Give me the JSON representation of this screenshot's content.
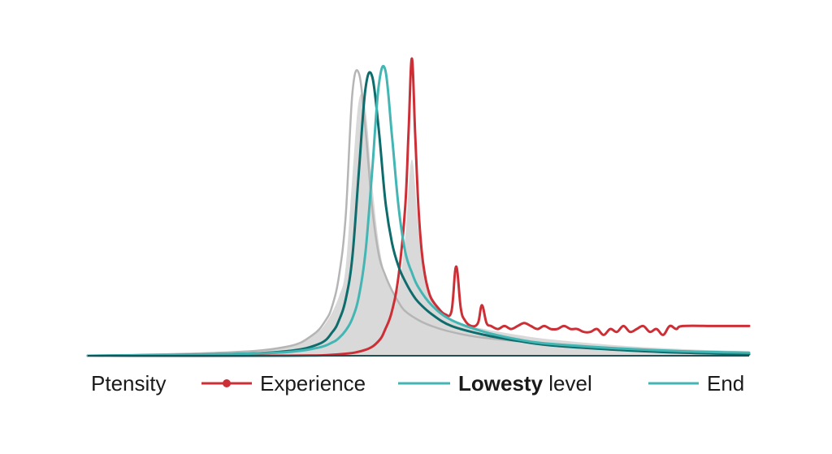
{
  "chart_data": {
    "type": "line",
    "title": "",
    "xlabel": "",
    "ylabel": "",
    "xlim": [
      0,
      100
    ],
    "ylim": [
      0,
      100
    ],
    "grid": false,
    "axes_visible": "x-baseline-only",
    "legend_position": "bottom",
    "legend": {
      "lead_label": "Ptensity",
      "entries": [
        {
          "series": "Experience",
          "marker": "line-with-point"
        },
        {
          "series": "Lowesty level",
          "marker": "line",
          "bold_word": "Lowesty",
          "rest": " level"
        },
        {
          "series": "End",
          "marker": "line"
        }
      ]
    },
    "series": [
      {
        "name": "Ptensity",
        "style": "filled-area",
        "color": "#d9d9d9",
        "x": [
          0,
          20,
          30,
          34,
          36,
          38,
          39,
          40,
          41,
          42,
          43,
          44,
          45,
          46,
          47,
          48,
          49,
          50,
          51,
          52,
          54,
          56,
          60,
          65,
          70,
          80,
          90,
          100
        ],
        "y": [
          0,
          1,
          3,
          7,
          11,
          20,
          30,
          60,
          86,
          83,
          58,
          38,
          27,
          22,
          23,
          40,
          66,
          42,
          26,
          20,
          14,
          11,
          9,
          7,
          5.5,
          3.5,
          2.2,
          1.5
        ]
      },
      {
        "name": "Ptensity outline",
        "style": "line",
        "color": "#b5b5b5",
        "x": [
          0,
          20,
          30,
          34,
          36,
          37,
          38,
          39,
          40,
          41,
          42,
          43,
          44,
          45,
          46,
          47,
          48,
          50,
          52,
          55,
          60,
          70,
          80,
          90,
          100
        ],
        "y": [
          0,
          1,
          3,
          7,
          12,
          17,
          27,
          47,
          88,
          95,
          76,
          50,
          34,
          27,
          22,
          18,
          15,
          12,
          10,
          8,
          6,
          4,
          2.5,
          1.5,
          1
        ]
      },
      {
        "name": "Experience",
        "style": "line",
        "color": "#cc2f36",
        "x": [
          0,
          30,
          38,
          42,
          44,
          45,
          46,
          47,
          48,
          48.5,
          49,
          49.5,
          50,
          50.5,
          51,
          51.5,
          52,
          53,
          54,
          55,
          55.7,
          56.4,
          57,
          58,
          59,
          59.6,
          60.3,
          61,
          62,
          63,
          64,
          65,
          66,
          67,
          68,
          69,
          70,
          71,
          72,
          73,
          74,
          75,
          76,
          77,
          78,
          79,
          80,
          81,
          82,
          83,
          84,
          85,
          86,
          87,
          88,
          89,
          90,
          95,
          100
        ],
        "y": [
          0,
          0,
          0.5,
          2,
          5,
          9,
          15,
          27,
          50,
          75,
          100,
          75,
          50,
          35,
          27,
          22,
          19,
          16,
          14,
          15,
          30,
          16,
          12,
          10,
          11,
          17,
          11,
          10,
          9,
          10,
          9,
          10,
          11,
          10,
          9,
          10,
          9,
          9,
          10,
          9,
          9,
          8,
          8,
          9,
          7,
          9,
          8,
          10,
          8,
          9,
          10,
          8,
          9,
          7,
          10,
          9,
          10,
          10,
          10
        ]
      },
      {
        "name": "Lowesty level",
        "style": "line",
        "color": "#0e6c6c",
        "x": [
          0,
          20,
          30,
          35,
          37,
          38,
          39,
          40,
          41,
          42,
          43,
          44,
          45,
          46,
          47,
          48,
          49,
          50,
          52,
          55,
          60,
          65,
          70,
          80,
          90,
          100
        ],
        "y": [
          0,
          0.5,
          1.5,
          4,
          8,
          12,
          19,
          33,
          62,
          90,
          94,
          76,
          52,
          38,
          30,
          25,
          21,
          18,
          14,
          10,
          7,
          5,
          3.5,
          2,
          1,
          0.5
        ]
      },
      {
        "name": "End",
        "style": "line",
        "color": "#43b6b4",
        "x": [
          0,
          20,
          30,
          35,
          37,
          38,
          39,
          40,
          41,
          42,
          43,
          44,
          45,
          46,
          47,
          48,
          49,
          50,
          52,
          55,
          60,
          65,
          70,
          80,
          90,
          100
        ],
        "y": [
          0,
          0.5,
          1.2,
          2.8,
          4.5,
          6,
          8.5,
          12.5,
          20,
          35,
          62,
          91,
          96,
          74,
          50,
          35,
          28,
          23,
          17,
          12,
          8,
          5.5,
          4,
          2.5,
          1.5,
          1
        ]
      }
    ]
  },
  "colors": {
    "axis": "#1d4f55",
    "background": "#ffffff"
  }
}
